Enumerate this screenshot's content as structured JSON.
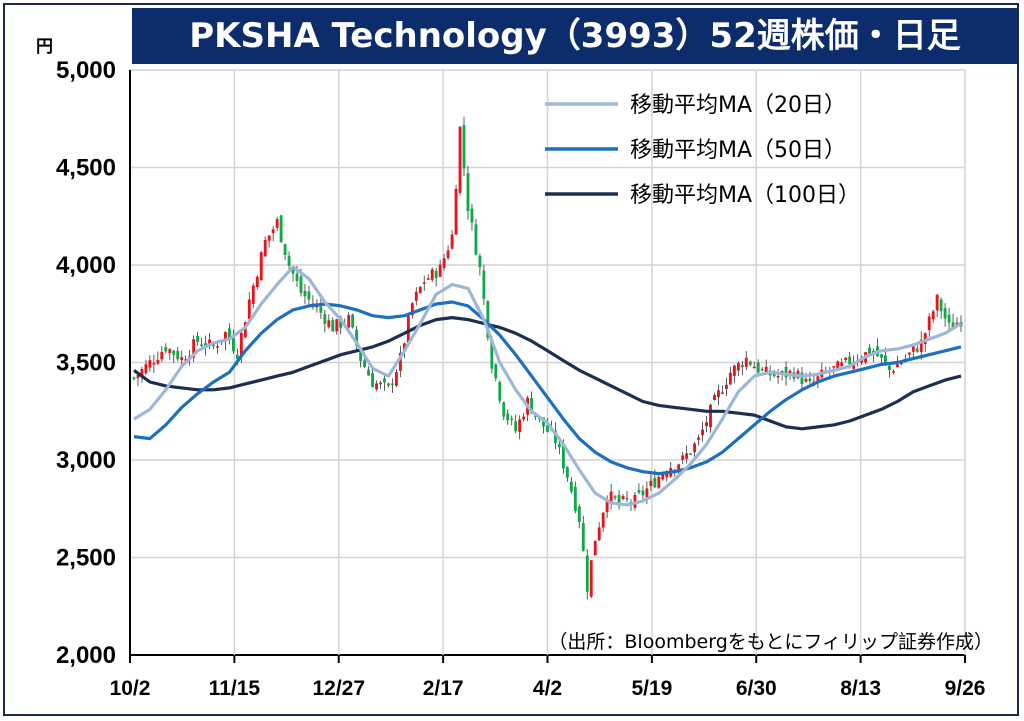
{
  "header": {
    "title": "PKSHA Technology（3993）52週株価・日足",
    "unit": "円"
  },
  "source_note": "（出所：Bloombergをもとにフィリップ証券作成）",
  "colors": {
    "title_bg": "#0d2c6b",
    "up_candle": "#e8141b",
    "down_candle": "#10a848",
    "ma20": "#9cb7d8",
    "ma50": "#1f6fbf",
    "ma100": "#1b2f52",
    "grid": "#d4d4d4"
  },
  "chart_data": {
    "type": "line",
    "title": "PKSHA Technology（3993）52週株価・日足",
    "ylabel": "円",
    "ylim": [
      2000,
      5000
    ],
    "yticks": [
      "2,000",
      "2,500",
      "3,000",
      "3,500",
      "4,000",
      "4,500",
      "5,000"
    ],
    "ytick_values": [
      2000,
      2500,
      3000,
      3500,
      4000,
      4500,
      5000
    ],
    "categories": [
      "10/2",
      "11/15",
      "12/27",
      "2/17",
      "4/2",
      "5/19",
      "6/30",
      "8/13",
      "9/26"
    ],
    "grid": true,
    "legend_position": "top-right",
    "close_series_anchors": [
      [
        0,
        3420
      ],
      [
        3,
        3480
      ],
      [
        8,
        3580
      ],
      [
        12,
        3520
      ],
      [
        16,
        3610
      ],
      [
        20,
        3580
      ],
      [
        23,
        3650
      ],
      [
        26,
        3550
      ],
      [
        29,
        3820
      ],
      [
        33,
        4120
      ],
      [
        36,
        4220
      ],
      [
        39,
        4000
      ],
      [
        42,
        3860
      ],
      [
        46,
        3780
      ],
      [
        50,
        3680
      ],
      [
        54,
        3720
      ],
      [
        57,
        3520
      ],
      [
        60,
        3400
      ],
      [
        64,
        3360
      ],
      [
        67,
        3520
      ],
      [
        70,
        3800
      ],
      [
        73,
        3920
      ],
      [
        77,
        3980
      ],
      [
        80,
        4150
      ],
      [
        82,
        4700
      ],
      [
        84,
        4300
      ],
      [
        87,
        3980
      ],
      [
        90,
        3500
      ],
      [
        93,
        3250
      ],
      [
        96,
        3150
      ],
      [
        99,
        3300
      ],
      [
        102,
        3200
      ],
      [
        106,
        3100
      ],
      [
        109,
        2920
      ],
      [
        112,
        2700
      ],
      [
        114,
        2350
      ],
      [
        116,
        2600
      ],
      [
        119,
        2820
      ],
      [
        122,
        2780
      ],
      [
        126,
        2790
      ],
      [
        130,
        2870
      ],
      [
        134,
        2960
      ],
      [
        138,
        3000
      ],
      [
        142,
        3100
      ],
      [
        146,
        3300
      ],
      [
        150,
        3450
      ],
      [
        154,
        3520
      ],
      [
        158,
        3450
      ],
      [
        162,
        3430
      ],
      [
        166,
        3450
      ],
      [
        170,
        3380
      ],
      [
        174,
        3450
      ],
      [
        178,
        3480
      ],
      [
        182,
        3530
      ],
      [
        186,
        3560
      ],
      [
        190,
        3460
      ],
      [
        194,
        3520
      ],
      [
        198,
        3600
      ],
      [
        202,
        3820
      ],
      [
        205,
        3680
      ],
      [
        208,
        3720
      ]
    ],
    "series": [
      {
        "name": "移動平均MA（20日）",
        "color": "#9cb7d8",
        "points": [
          [
            0,
            3210
          ],
          [
            4,
            3260
          ],
          [
            8,
            3360
          ],
          [
            12,
            3480
          ],
          [
            16,
            3560
          ],
          [
            20,
            3600
          ],
          [
            24,
            3620
          ],
          [
            28,
            3680
          ],
          [
            32,
            3800
          ],
          [
            36,
            3900
          ],
          [
            40,
            3990
          ],
          [
            44,
            3930
          ],
          [
            48,
            3810
          ],
          [
            52,
            3720
          ],
          [
            56,
            3600
          ],
          [
            60,
            3470
          ],
          [
            64,
            3430
          ],
          [
            68,
            3560
          ],
          [
            72,
            3700
          ],
          [
            76,
            3850
          ],
          [
            80,
            3900
          ],
          [
            84,
            3880
          ],
          [
            88,
            3720
          ],
          [
            92,
            3500
          ],
          [
            96,
            3360
          ],
          [
            100,
            3250
          ],
          [
            104,
            3190
          ],
          [
            108,
            3080
          ],
          [
            112,
            2950
          ],
          [
            116,
            2830
          ],
          [
            120,
            2780
          ],
          [
            124,
            2770
          ],
          [
            128,
            2790
          ],
          [
            132,
            2830
          ],
          [
            136,
            2900
          ],
          [
            140,
            2980
          ],
          [
            144,
            3080
          ],
          [
            148,
            3210
          ],
          [
            152,
            3350
          ],
          [
            156,
            3430
          ],
          [
            160,
            3450
          ],
          [
            164,
            3440
          ],
          [
            168,
            3430
          ],
          [
            172,
            3440
          ],
          [
            176,
            3460
          ],
          [
            180,
            3480
          ],
          [
            184,
            3530
          ],
          [
            188,
            3560
          ],
          [
            192,
            3570
          ],
          [
            196,
            3590
          ],
          [
            200,
            3620
          ],
          [
            204,
            3650
          ],
          [
            208,
            3700
          ]
        ]
      },
      {
        "name": "移動平均MA（50日）",
        "color": "#1f6fbf",
        "points": [
          [
            0,
            3120
          ],
          [
            4,
            3110
          ],
          [
            8,
            3180
          ],
          [
            12,
            3270
          ],
          [
            16,
            3340
          ],
          [
            20,
            3400
          ],
          [
            24,
            3450
          ],
          [
            28,
            3560
          ],
          [
            32,
            3650
          ],
          [
            36,
            3720
          ],
          [
            40,
            3770
          ],
          [
            44,
            3790
          ],
          [
            48,
            3800
          ],
          [
            52,
            3790
          ],
          [
            56,
            3770
          ],
          [
            60,
            3740
          ],
          [
            64,
            3730
          ],
          [
            68,
            3740
          ],
          [
            72,
            3770
          ],
          [
            76,
            3800
          ],
          [
            80,
            3810
          ],
          [
            84,
            3790
          ],
          [
            88,
            3720
          ],
          [
            92,
            3640
          ],
          [
            96,
            3540
          ],
          [
            100,
            3430
          ],
          [
            104,
            3320
          ],
          [
            108,
            3210
          ],
          [
            112,
            3110
          ],
          [
            116,
            3040
          ],
          [
            120,
            2990
          ],
          [
            124,
            2960
          ],
          [
            128,
            2940
          ],
          [
            132,
            2930
          ],
          [
            136,
            2940
          ],
          [
            140,
            2960
          ],
          [
            144,
            2990
          ],
          [
            148,
            3040
          ],
          [
            152,
            3110
          ],
          [
            156,
            3180
          ],
          [
            160,
            3250
          ],
          [
            164,
            3310
          ],
          [
            168,
            3360
          ],
          [
            172,
            3400
          ],
          [
            176,
            3430
          ],
          [
            180,
            3450
          ],
          [
            184,
            3470
          ],
          [
            188,
            3490
          ],
          [
            192,
            3500
          ],
          [
            196,
            3520
          ],
          [
            200,
            3540
          ],
          [
            204,
            3560
          ],
          [
            208,
            3580
          ]
        ]
      },
      {
        "name": "移動平均MA（100日）",
        "color": "#1b2f52",
        "points": [
          [
            0,
            3460
          ],
          [
            4,
            3400
          ],
          [
            8,
            3380
          ],
          [
            12,
            3370
          ],
          [
            16,
            3360
          ],
          [
            20,
            3360
          ],
          [
            24,
            3370
          ],
          [
            28,
            3390
          ],
          [
            32,
            3410
          ],
          [
            36,
            3430
          ],
          [
            40,
            3450
          ],
          [
            44,
            3480
          ],
          [
            48,
            3510
          ],
          [
            52,
            3540
          ],
          [
            56,
            3560
          ],
          [
            60,
            3580
          ],
          [
            64,
            3610
          ],
          [
            68,
            3650
          ],
          [
            72,
            3690
          ],
          [
            76,
            3720
          ],
          [
            80,
            3730
          ],
          [
            84,
            3720
          ],
          [
            88,
            3700
          ],
          [
            92,
            3680
          ],
          [
            96,
            3650
          ],
          [
            100,
            3610
          ],
          [
            104,
            3560
          ],
          [
            108,
            3510
          ],
          [
            112,
            3460
          ],
          [
            116,
            3420
          ],
          [
            120,
            3380
          ],
          [
            124,
            3340
          ],
          [
            128,
            3300
          ],
          [
            132,
            3280
          ],
          [
            136,
            3270
          ],
          [
            140,
            3260
          ],
          [
            144,
            3250
          ],
          [
            148,
            3250
          ],
          [
            152,
            3240
          ],
          [
            156,
            3230
          ],
          [
            160,
            3200
          ],
          [
            164,
            3170
          ],
          [
            168,
            3160
          ],
          [
            172,
            3170
          ],
          [
            176,
            3180
          ],
          [
            180,
            3200
          ],
          [
            184,
            3230
          ],
          [
            188,
            3260
          ],
          [
            192,
            3300
          ],
          [
            196,
            3350
          ],
          [
            200,
            3380
          ],
          [
            204,
            3410
          ],
          [
            208,
            3430
          ]
        ]
      }
    ]
  }
}
